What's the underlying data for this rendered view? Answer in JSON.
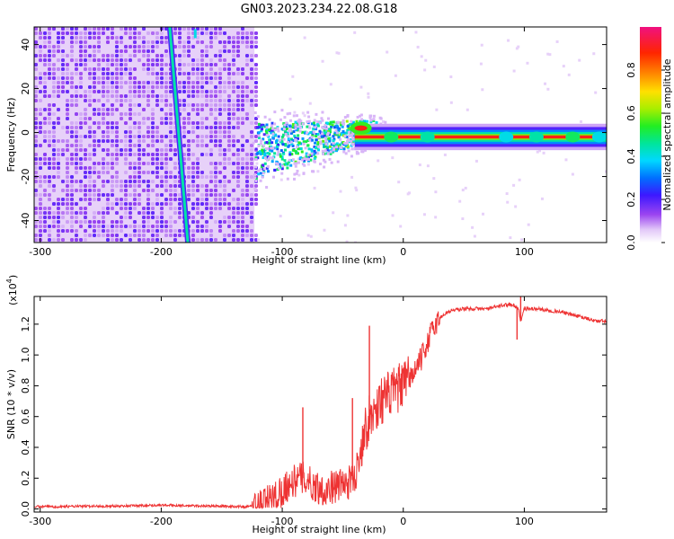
{
  "figure_title": "GN03.2023.234.22.08.G18",
  "colorbar": {
    "label": "Normalized spectral amplitude",
    "ticks": [
      "0.0",
      "0.2",
      "0.4",
      "0.6",
      "0.8"
    ],
    "range": [
      0,
      1
    ]
  },
  "chart_data": [
    {
      "type": "heatmap",
      "title": "",
      "xlabel": "Height of straight line (km)",
      "ylabel": "Frequency (Hz)",
      "xlim": [
        -305,
        168
      ],
      "ylim": [
        -50,
        48
      ],
      "xticks": [
        -300,
        -200,
        -100,
        0,
        100
      ],
      "yticks": [
        -40,
        -20,
        0,
        20,
        40
      ],
      "colormap": "rainbow (purple = 0, red/magenta = 1)",
      "features": [
        {
          "name": "noise field",
          "x_range": [
            -305,
            -123
          ],
          "y_range": [
            -50,
            48
          ],
          "level": 0.15
        },
        {
          "name": "diagonal streak",
          "x_start": -193,
          "y_start": 48,
          "x_end": -178,
          "y_end": -50,
          "level": 0.45
        },
        {
          "name": "low-frequency band",
          "x_range": [
            -123,
            168
          ],
          "y_center": -2,
          "level": 0.9
        }
      ]
    },
    {
      "type": "line",
      "title": "",
      "xlabel": "Height of straight line (km)",
      "ylabel": "SNR (10 * v/v)",
      "exponent_label": "(x10",
      "exponent_sup": "4",
      "exponent_close": ")",
      "xlim": [
        -305,
        168
      ],
      "ylim": [
        -0.02,
        1.38
      ],
      "xticks": [
        -300,
        -200,
        -100,
        0,
        100
      ],
      "yticks": [
        0.0,
        0.2,
        0.4,
        0.6,
        0.8,
        1.0,
        1.2
      ],
      "ytick_labels": [
        "0.0",
        "0.2",
        "0.4",
        "0.6",
        "0.8",
        "1.0",
        "1.2"
      ],
      "color": "#ee3333",
      "series": [
        {
          "x": [
            -305,
            -290,
            -260,
            -230,
            -200,
            -170,
            -150,
            -130,
            -120,
            -110,
            -100,
            -95,
            -90,
            -85,
            -80,
            -75,
            -70,
            -65,
            -60,
            -55,
            -50,
            -45,
            -40,
            -38,
            -35,
            -32,
            -30,
            -28,
            -25,
            -22,
            -20,
            -15,
            -10,
            -5,
            0,
            5,
            10,
            15,
            20,
            25,
            30,
            35,
            40,
            50,
            60,
            70,
            80,
            90,
            95,
            97,
            100,
            110,
            120,
            130,
            140,
            150,
            160,
            168
          ],
          "y": [
            0.015,
            0.015,
            0.018,
            0.02,
            0.025,
            0.02,
            0.018,
            0.015,
            0.02,
            0.06,
            0.12,
            0.16,
            0.18,
            0.2,
            0.2,
            0.15,
            0.14,
            0.12,
            0.14,
            0.15,
            0.16,
            0.17,
            0.2,
            0.28,
            0.4,
            0.52,
            0.55,
            0.58,
            0.62,
            0.65,
            0.7,
            0.72,
            0.75,
            0.78,
            0.8,
            0.85,
            0.9,
            0.98,
            1.08,
            1.18,
            1.24,
            1.27,
            1.29,
            1.3,
            1.3,
            1.3,
            1.32,
            1.33,
            1.3,
            1.22,
            1.3,
            1.3,
            1.29,
            1.28,
            1.26,
            1.24,
            1.22,
            1.22
          ]
        }
      ],
      "peaks": [
        {
          "x": -83,
          "y": 0.66
        },
        {
          "x": -42,
          "y": 0.72
        },
        {
          "x": -28,
          "y": 1.19
        },
        {
          "x": 97,
          "y": 1.38
        }
      ]
    }
  ]
}
